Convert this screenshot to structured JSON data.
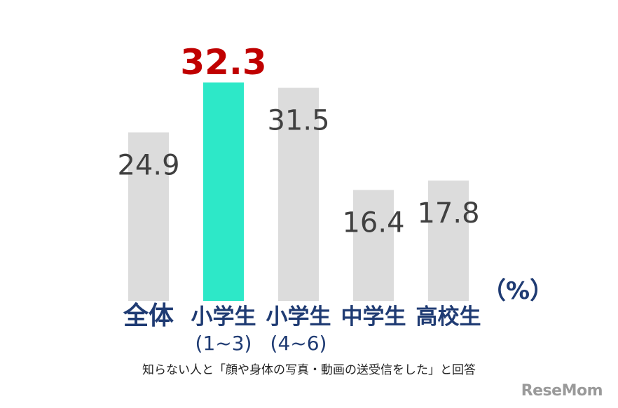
{
  "chart_data": {
    "type": "bar",
    "categories": [
      {
        "line1": "全体",
        "line2": ""
      },
      {
        "line1": "小学生",
        "line2": "(1~3)"
      },
      {
        "line1": "小学生",
        "line2": "(4~6)"
      },
      {
        "line1": "中学生",
        "line2": ""
      },
      {
        "line1": "高校生",
        "line2": ""
      }
    ],
    "values": [
      24.9,
      32.3,
      31.5,
      16.4,
      17.8
    ],
    "labels": [
      "24.9",
      "32.3",
      "31.5",
      "16.4",
      "17.8"
    ],
    "highlight_index": 1,
    "ylim": [
      0,
      36
    ],
    "grid": false,
    "unit_label": "（%）",
    "caption": "知らない人と「顔や身体の写真・動画の送受信をした」と回答",
    "colors": {
      "bar": "#dcdcdc",
      "highlight_bar": "#2de8c8",
      "value_text": "#404040",
      "highlight_text": "#c00000",
      "category_text": "#1f3b73"
    }
  },
  "watermark": "ReseMom"
}
